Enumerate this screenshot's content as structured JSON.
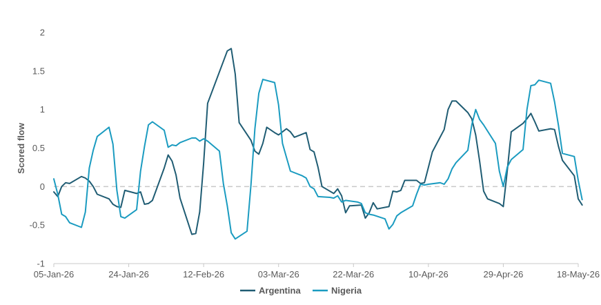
{
  "chart_data": {
    "type": "line",
    "title": "",
    "xlabel": "",
    "ylabel": "Scored flow",
    "ylim": [
      -1,
      2
    ],
    "yticks": [
      -1,
      -0.5,
      0,
      0.5,
      1,
      1.5,
      2
    ],
    "ytick_labels": [
      "-1",
      "-0.5",
      "0",
      "0.5",
      "1",
      "1.5",
      "2"
    ],
    "x_range": [
      "2026-01-05",
      "2026-05-18"
    ],
    "xticks": [
      "2026-01-05",
      "2026-01-24",
      "2026-02-12",
      "2026-03-03",
      "2026-03-22",
      "2026-04-10",
      "2026-04-29",
      "2026-05-18"
    ],
    "xtick_labels": [
      "05-Jan-26",
      "24-Jan-26",
      "12-Feb-26",
      "03-Mar-26",
      "22-Mar-26",
      "10-Apr-26",
      "29-Apr-26",
      "18-May-26"
    ],
    "zero_line": true,
    "grid": false,
    "legend_position": "bottom",
    "colors": {
      "Argentina": "#1f5c73",
      "Nigeria": "#1a9bc0",
      "zero_line": "#c8c8c8",
      "axis": "#c8c8c8"
    },
    "series": [
      {
        "name": "Argentina",
        "points": [
          [
            "2026-01-05",
            -0.07
          ],
          [
            "2026-01-06",
            -0.13
          ],
          [
            "2026-01-07",
            0.0
          ],
          [
            "2026-01-08",
            0.05
          ],
          [
            "2026-01-09",
            0.04
          ],
          [
            "2026-01-12",
            0.13
          ],
          [
            "2026-01-13",
            0.11
          ],
          [
            "2026-01-14",
            0.07
          ],
          [
            "2026-01-15",
            0.0
          ],
          [
            "2026-01-16",
            -0.1
          ],
          [
            "2026-01-19",
            -0.16
          ],
          [
            "2026-01-20",
            -0.23
          ],
          [
            "2026-01-21",
            -0.26
          ],
          [
            "2026-01-22",
            -0.27
          ],
          [
            "2026-01-23",
            -0.05
          ],
          [
            "2026-01-26",
            -0.09
          ],
          [
            "2026-01-27",
            -0.07
          ],
          [
            "2026-01-28",
            -0.23
          ],
          [
            "2026-01-29",
            -0.22
          ],
          [
            "2026-01-30",
            -0.18
          ],
          [
            "2026-02-02",
            0.24
          ],
          [
            "2026-02-03",
            0.41
          ],
          [
            "2026-02-04",
            0.33
          ],
          [
            "2026-02-05",
            0.15
          ],
          [
            "2026-02-06",
            -0.15
          ],
          [
            "2026-02-09",
            -0.62
          ],
          [
            "2026-02-10",
            -0.61
          ],
          [
            "2026-02-11",
            -0.33
          ],
          [
            "2026-02-12",
            0.3
          ],
          [
            "2026-02-13",
            1.08
          ],
          [
            "2026-02-18",
            1.76
          ],
          [
            "2026-02-19",
            1.79
          ],
          [
            "2026-02-20",
            1.46
          ],
          [
            "2026-02-21",
            0.83
          ],
          [
            "2026-02-24",
            0.6
          ],
          [
            "2026-02-25",
            0.46
          ],
          [
            "2026-02-26",
            0.42
          ],
          [
            "2026-02-27",
            0.56
          ],
          [
            "2026-02-28",
            0.77
          ],
          [
            "2026-03-02",
            0.7
          ],
          [
            "2026-03-03",
            0.67
          ],
          [
            "2026-03-04",
            0.71
          ],
          [
            "2026-03-05",
            0.75
          ],
          [
            "2026-03-06",
            0.71
          ],
          [
            "2026-03-07",
            0.64
          ],
          [
            "2026-03-10",
            0.7
          ],
          [
            "2026-03-11",
            0.48
          ],
          [
            "2026-03-12",
            0.45
          ],
          [
            "2026-03-13",
            0.25
          ],
          [
            "2026-03-14",
            0.0
          ],
          [
            "2026-03-17",
            -0.09
          ],
          [
            "2026-03-18",
            -0.03
          ],
          [
            "2026-03-19",
            -0.12
          ],
          [
            "2026-03-20",
            -0.34
          ],
          [
            "2026-03-21",
            -0.25
          ],
          [
            "2026-03-24",
            -0.24
          ],
          [
            "2026-03-25",
            -0.41
          ],
          [
            "2026-03-26",
            -0.34
          ],
          [
            "2026-03-27",
            -0.21
          ],
          [
            "2026-03-28",
            -0.29
          ],
          [
            "2026-03-31",
            -0.26
          ],
          [
            "2026-04-01",
            -0.06
          ],
          [
            "2026-04-02",
            -0.07
          ],
          [
            "2026-04-03",
            -0.05
          ],
          [
            "2026-04-04",
            0.08
          ],
          [
            "2026-04-07",
            0.08
          ],
          [
            "2026-04-08",
            0.04
          ],
          [
            "2026-04-09",
            0.05
          ],
          [
            "2026-04-10",
            0.25
          ],
          [
            "2026-04-11",
            0.45
          ],
          [
            "2026-04-14",
            0.74
          ],
          [
            "2026-04-15",
            1.0
          ],
          [
            "2026-04-16",
            1.11
          ],
          [
            "2026-04-17",
            1.11
          ],
          [
            "2026-04-20",
            0.96
          ],
          [
            "2026-04-21",
            0.88
          ],
          [
            "2026-04-22",
            0.67
          ],
          [
            "2026-04-23",
            0.33
          ],
          [
            "2026-04-24",
            -0.06
          ],
          [
            "2026-04-25",
            -0.16
          ],
          [
            "2026-04-28",
            -0.22
          ],
          [
            "2026-04-29",
            -0.26
          ],
          [
            "2026-04-30",
            0.2
          ],
          [
            "2026-05-01",
            0.71
          ],
          [
            "2026-05-04",
            0.82
          ],
          [
            "2026-05-05",
            0.88
          ],
          [
            "2026-05-06",
            0.95
          ],
          [
            "2026-05-07",
            0.84
          ],
          [
            "2026-05-08",
            0.72
          ],
          [
            "2026-05-11",
            0.75
          ],
          [
            "2026-05-12",
            0.74
          ],
          [
            "2026-05-13",
            0.52
          ],
          [
            "2026-05-14",
            0.34
          ],
          [
            "2026-05-17",
            0.14
          ],
          [
            "2026-05-18",
            -0.16
          ],
          [
            "2026-05-19",
            -0.24
          ]
        ]
      },
      {
        "name": "Nigeria",
        "points": [
          [
            "2026-01-05",
            0.1
          ],
          [
            "2026-01-06",
            -0.1
          ],
          [
            "2026-01-07",
            -0.36
          ],
          [
            "2026-01-08",
            -0.39
          ],
          [
            "2026-01-09",
            -0.47
          ],
          [
            "2026-01-12",
            -0.53
          ],
          [
            "2026-01-13",
            -0.33
          ],
          [
            "2026-01-14",
            0.24
          ],
          [
            "2026-01-15",
            0.47
          ],
          [
            "2026-01-16",
            0.65
          ],
          [
            "2026-01-19",
            0.77
          ],
          [
            "2026-01-20",
            0.55
          ],
          [
            "2026-01-21",
            -0.05
          ],
          [
            "2026-01-22",
            -0.39
          ],
          [
            "2026-01-23",
            -0.41
          ],
          [
            "2026-01-26",
            -0.3
          ],
          [
            "2026-01-27",
            0.2
          ],
          [
            "2026-01-28",
            0.52
          ],
          [
            "2026-01-29",
            0.8
          ],
          [
            "2026-01-30",
            0.84
          ],
          [
            "2026-02-02",
            0.73
          ],
          [
            "2026-02-03",
            0.51
          ],
          [
            "2026-02-04",
            0.54
          ],
          [
            "2026-02-05",
            0.53
          ],
          [
            "2026-02-06",
            0.57
          ],
          [
            "2026-02-09",
            0.63
          ],
          [
            "2026-02-10",
            0.63
          ],
          [
            "2026-02-11",
            0.59
          ],
          [
            "2026-02-12",
            0.62
          ],
          [
            "2026-02-13",
            0.59
          ],
          [
            "2026-02-16",
            0.46
          ],
          [
            "2026-02-17",
            0.04
          ],
          [
            "2026-02-18",
            -0.25
          ],
          [
            "2026-02-19",
            -0.6
          ],
          [
            "2026-02-20",
            -0.68
          ],
          [
            "2026-02-23",
            -0.58
          ],
          [
            "2026-02-24",
            0.02
          ],
          [
            "2026-02-25",
            0.75
          ],
          [
            "2026-02-26",
            1.21
          ],
          [
            "2026-02-27",
            1.39
          ],
          [
            "2026-03-02",
            1.35
          ],
          [
            "2026-03-03",
            1.06
          ],
          [
            "2026-03-04",
            0.56
          ],
          [
            "2026-03-05",
            0.38
          ],
          [
            "2026-03-06",
            0.2
          ],
          [
            "2026-03-09",
            0.14
          ],
          [
            "2026-03-10",
            0.11
          ],
          [
            "2026-03-11",
            0.0
          ],
          [
            "2026-03-12",
            -0.03
          ],
          [
            "2026-03-13",
            -0.13
          ],
          [
            "2026-03-16",
            -0.14
          ],
          [
            "2026-03-17",
            -0.15
          ],
          [
            "2026-03-18",
            -0.12
          ],
          [
            "2026-03-19",
            -0.2
          ],
          [
            "2026-03-20",
            -0.18
          ],
          [
            "2026-03-23",
            -0.2
          ],
          [
            "2026-03-24",
            -0.22
          ],
          [
            "2026-03-25",
            -0.34
          ],
          [
            "2026-03-26",
            -0.36
          ],
          [
            "2026-03-27",
            -0.37
          ],
          [
            "2026-03-30",
            -0.42
          ],
          [
            "2026-03-31",
            -0.55
          ],
          [
            "2026-04-01",
            -0.49
          ],
          [
            "2026-04-02",
            -0.38
          ],
          [
            "2026-04-03",
            -0.34
          ],
          [
            "2026-04-06",
            -0.25
          ],
          [
            "2026-04-07",
            -0.1
          ],
          [
            "2026-04-08",
            0.03
          ],
          [
            "2026-04-09",
            0.02
          ],
          [
            "2026-04-10",
            0.03
          ],
          [
            "2026-04-13",
            0.05
          ],
          [
            "2026-04-14",
            0.03
          ],
          [
            "2026-04-15",
            0.1
          ],
          [
            "2026-04-16",
            0.23
          ],
          [
            "2026-04-17",
            0.31
          ],
          [
            "2026-04-20",
            0.47
          ],
          [
            "2026-04-21",
            0.8
          ],
          [
            "2026-04-22",
            1.0
          ],
          [
            "2026-04-23",
            0.87
          ],
          [
            "2026-04-24",
            0.8
          ],
          [
            "2026-04-27",
            0.56
          ],
          [
            "2026-04-28",
            0.2
          ],
          [
            "2026-04-29",
            0.0
          ],
          [
            "2026-04-30",
            0.25
          ],
          [
            "2026-05-01",
            0.35
          ],
          [
            "2026-05-04",
            0.48
          ],
          [
            "2026-05-05",
            1.0
          ],
          [
            "2026-05-06",
            1.31
          ],
          [
            "2026-05-07",
            1.32
          ],
          [
            "2026-05-08",
            1.38
          ],
          [
            "2026-05-11",
            1.34
          ],
          [
            "2026-05-12",
            1.1
          ],
          [
            "2026-05-13",
            0.79
          ],
          [
            "2026-05-14",
            0.43
          ],
          [
            "2026-05-17",
            0.39
          ],
          [
            "2026-05-18",
            0.08
          ],
          [
            "2026-05-19",
            -0.17
          ]
        ]
      }
    ]
  }
}
